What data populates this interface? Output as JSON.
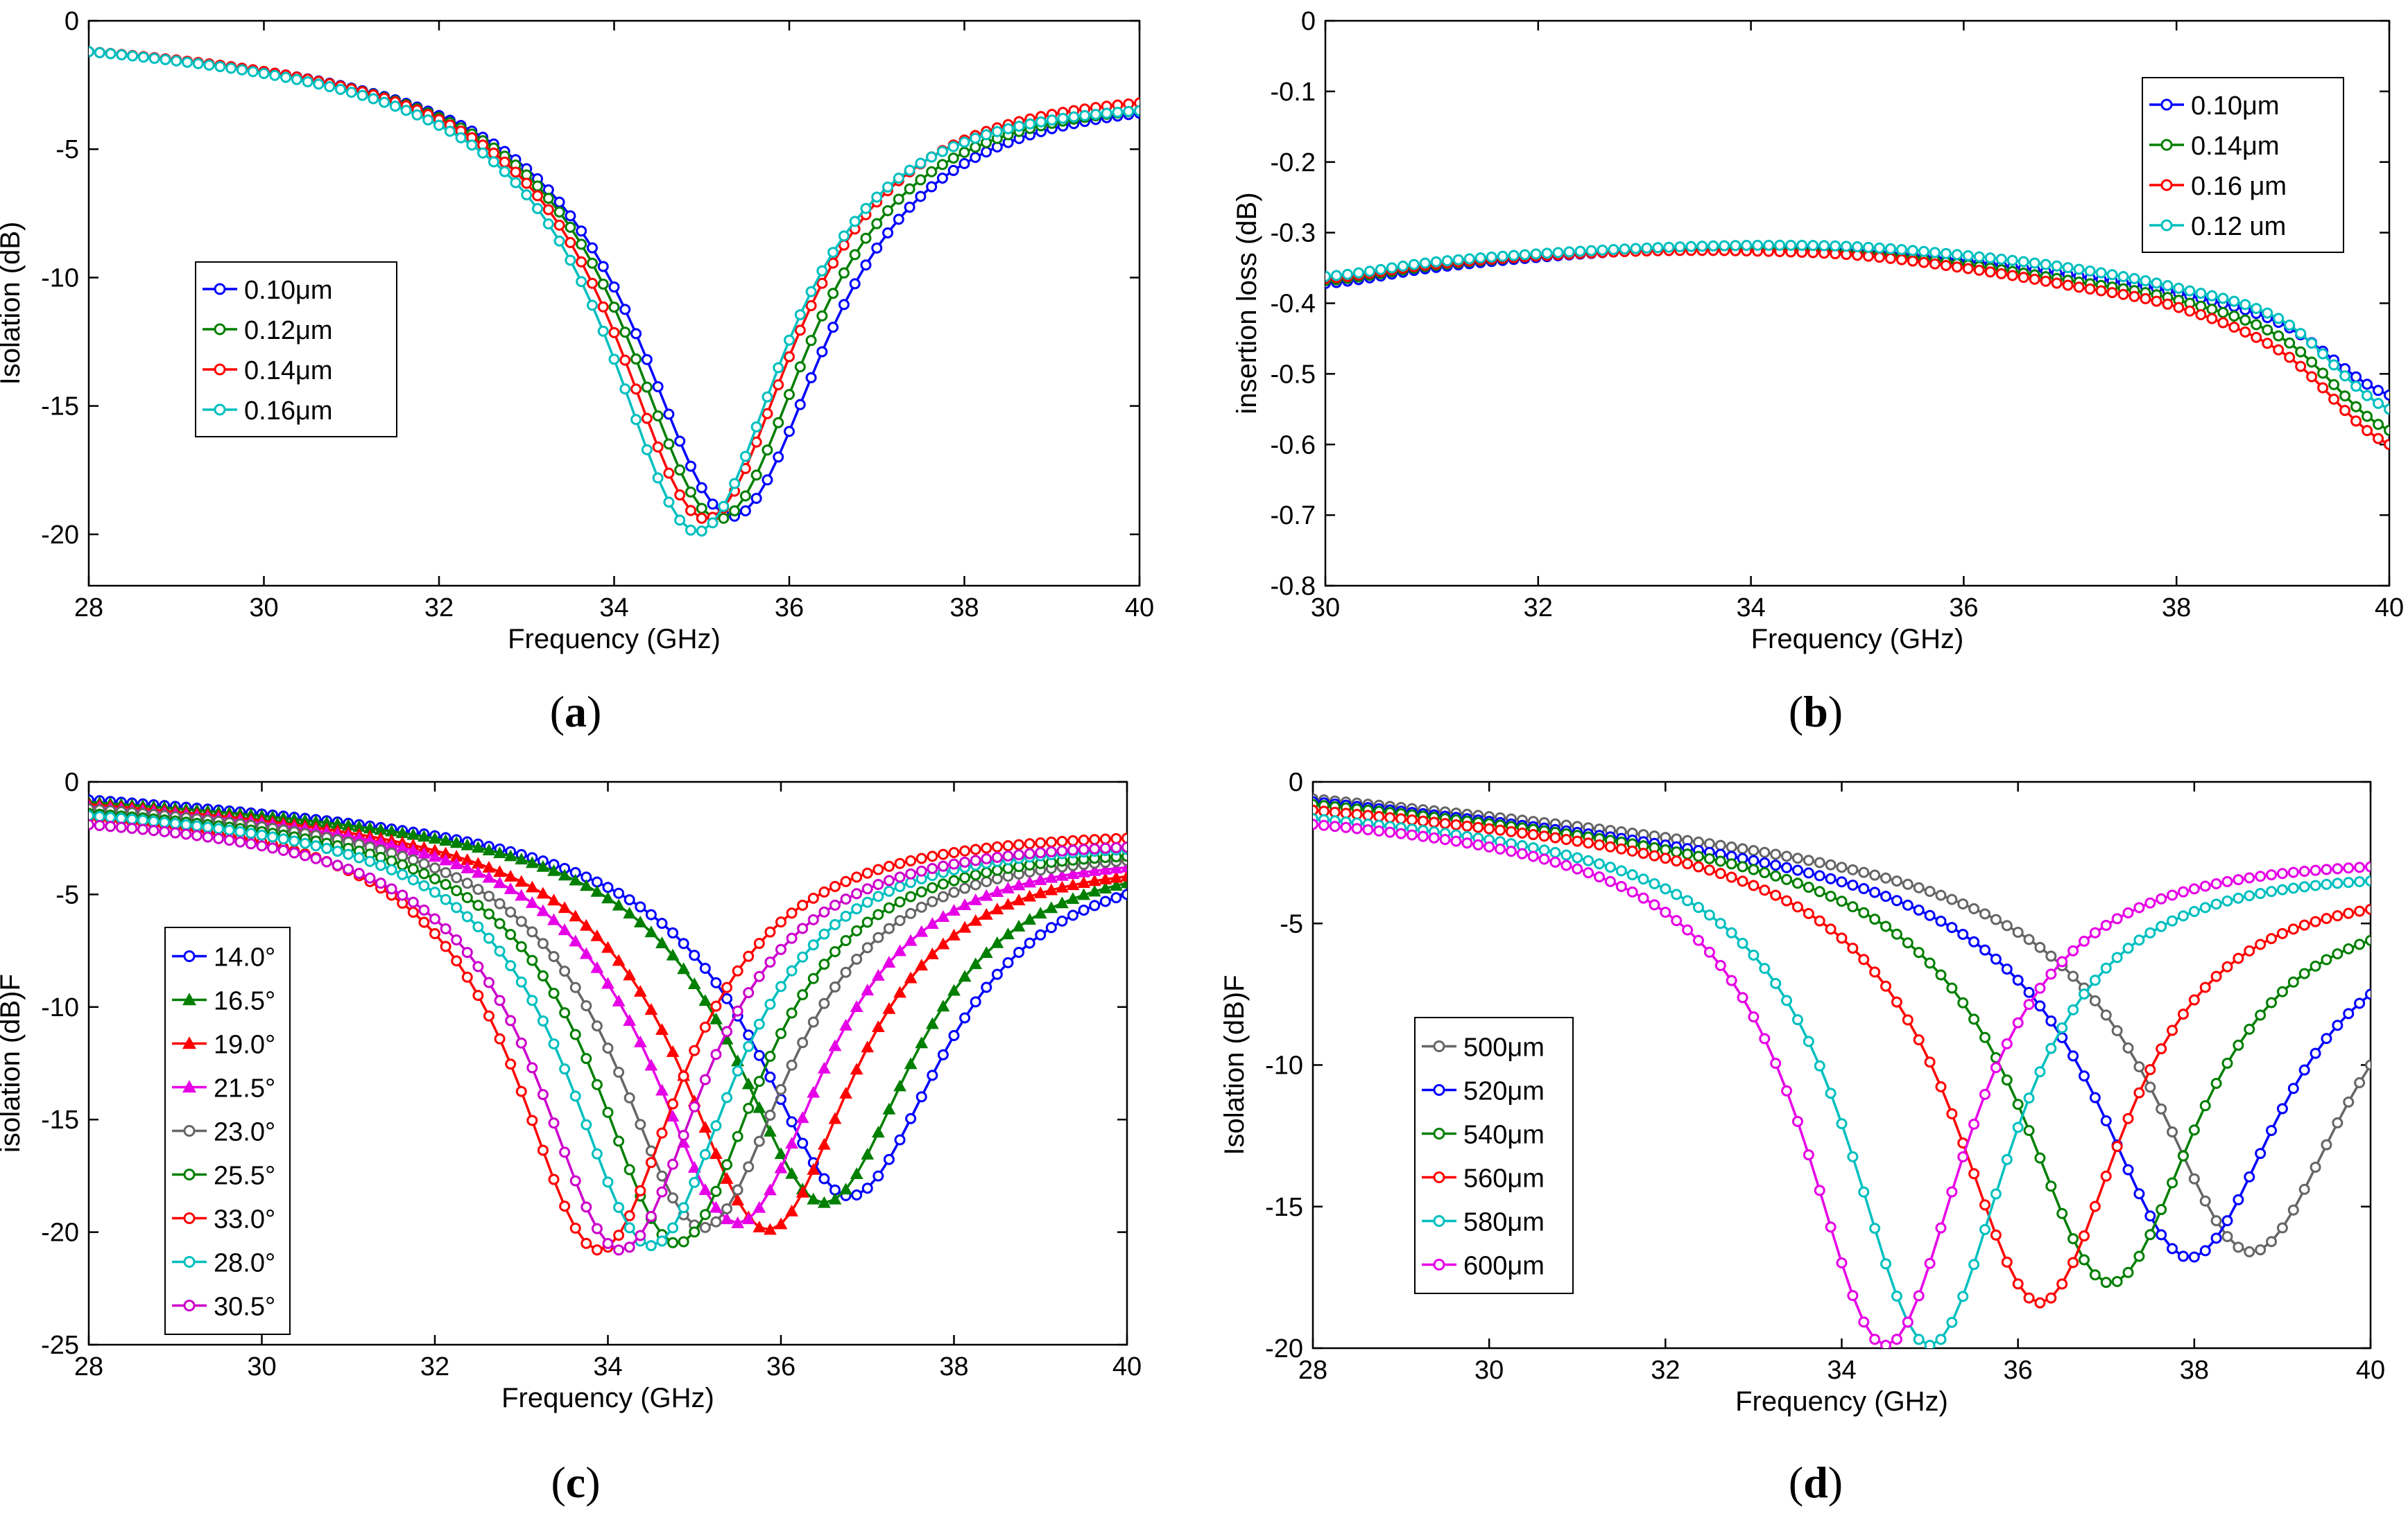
{
  "chart_data": [
    {
      "id": "a",
      "type": "line",
      "caption": "a",
      "xlabel": "Frequency (GHz)",
      "ylabel": "Isolation (dB)",
      "xlim": [
        28,
        40
      ],
      "ylim": [
        -22,
        0
      ],
      "xticks": [
        28,
        30,
        32,
        34,
        36,
        38,
        40
      ],
      "yticks": [
        0,
        -5,
        -10,
        -15,
        -20
      ],
      "xtick_labels": [
        "28",
        "30",
        "32",
        "34",
        "36",
        "38",
        "40"
      ],
      "ytick_labels": [
        "0",
        "-5",
        "-10",
        "-15",
        "-20"
      ],
      "legend_position": "middle-left",
      "series": [
        {
          "name": "0.10μm",
          "color": "#0000ff",
          "marker": "circle",
          "shape": {
            "start": -1.2,
            "min": -19.3,
            "f0": 35.35,
            "w": 1.35,
            "end": -3.6
          }
        },
        {
          "name": "0.12μm",
          "color": "#007f00",
          "marker": "circle",
          "shape": {
            "start": -1.2,
            "min": -19.4,
            "f0": 35.2,
            "w": 1.3,
            "end": -3.5
          }
        },
        {
          "name": "0.14μm",
          "color": "#ff0000",
          "marker": "circle",
          "shape": {
            "start": -1.2,
            "min": -19.4,
            "f0": 35.05,
            "w": 1.28,
            "end": -3.2
          }
        },
        {
          "name": "0.16μm",
          "color": "#00bfbf",
          "marker": "circle",
          "shape": {
            "start": -1.2,
            "min": -19.9,
            "f0": 34.95,
            "w": 1.25,
            "end": -3.5
          }
        }
      ]
    },
    {
      "id": "b",
      "type": "line",
      "caption": "b",
      "xlabel": "Frequency (GHz)",
      "ylabel": "insertion loss (dB)",
      "xlim": [
        30,
        40
      ],
      "ylim": [
        -0.8,
        0
      ],
      "xticks": [
        30,
        32,
        34,
        36,
        38,
        40
      ],
      "yticks": [
        0,
        -0.1,
        -0.2,
        -0.3,
        -0.4,
        -0.5,
        -0.6,
        -0.7,
        -0.8
      ],
      "xtick_labels": [
        "30",
        "32",
        "34",
        "36",
        "38",
        "40"
      ],
      "ytick_labels": [
        "0",
        "-0.1",
        "-0.2",
        "-0.3",
        "-0.4",
        "-0.5",
        "-0.6",
        "-0.7",
        "-0.8"
      ],
      "legend_position": "top-right",
      "series": [
        {
          "name": "0.10μm",
          "color": "#0000ff",
          "marker": "circle",
          "points": [
            [
              30,
              -0.372
            ],
            [
              31,
              -0.35
            ],
            [
              32,
              -0.335
            ],
            [
              33,
              -0.325
            ],
            [
              34,
              -0.32
            ],
            [
              35,
              -0.325
            ],
            [
              36,
              -0.34
            ],
            [
              37,
              -0.36
            ],
            [
              38,
              -0.385
            ],
            [
              39,
              -0.43
            ],
            [
              40,
              -0.53
            ]
          ]
        },
        {
          "name": "0.14μm",
          "color": "#007f00",
          "marker": "circle",
          "points": [
            [
              30,
              -0.368
            ],
            [
              31,
              -0.347
            ],
            [
              32,
              -0.333
            ],
            [
              33,
              -0.325
            ],
            [
              34,
              -0.322
            ],
            [
              35,
              -0.328
            ],
            [
              36,
              -0.345
            ],
            [
              37,
              -0.368
            ],
            [
              38,
              -0.395
            ],
            [
              39,
              -0.45
            ],
            [
              40,
              -0.58
            ]
          ]
        },
        {
          "name": "0.16 μm",
          "color": "#ff0000",
          "marker": "circle",
          "points": [
            [
              30,
              -0.365
            ],
            [
              31,
              -0.345
            ],
            [
              32,
              -0.333
            ],
            [
              33,
              -0.326
            ],
            [
              34,
              -0.326
            ],
            [
              35,
              -0.332
            ],
            [
              36,
              -0.35
            ],
            [
              37,
              -0.375
            ],
            [
              38,
              -0.405
            ],
            [
              39,
              -0.47
            ],
            [
              40,
              -0.6
            ]
          ]
        },
        {
          "name": "0.12 um",
          "color": "#00bfbf",
          "marker": "circle",
          "points": [
            [
              30,
              -0.362
            ],
            [
              31,
              -0.342
            ],
            [
              32,
              -0.33
            ],
            [
              33,
              -0.322
            ],
            [
              34,
              -0.318
            ],
            [
              35,
              -0.32
            ],
            [
              36,
              -0.332
            ],
            [
              37,
              -0.35
            ],
            [
              38,
              -0.378
            ],
            [
              39,
              -0.425
            ],
            [
              40,
              -0.55
            ]
          ]
        }
      ]
    },
    {
      "id": "c",
      "type": "line",
      "caption": "c",
      "xlabel": "Frequency (GHz)",
      "ylabel": "isolation (dB)F",
      "xlim": [
        28,
        40
      ],
      "ylim": [
        -25,
        0
      ],
      "xticks": [
        28,
        30,
        32,
        34,
        36,
        38,
        40
      ],
      "yticks": [
        0,
        -5,
        -10,
        -15,
        -20,
        -25
      ],
      "xtick_labels": [
        "28",
        "30",
        "32",
        "34",
        "36",
        "38",
        "40"
      ],
      "ytick_labels": [
        "0",
        "-5",
        "-10",
        "-15",
        "-20",
        "-25"
      ],
      "legend_position": "middle-left",
      "series": [
        {
          "name": "14.0°",
          "color": "#0000ff",
          "marker": "circle",
          "shape": {
            "start": -0.8,
            "min": -18.4,
            "f0": 36.8,
            "w": 1.35,
            "end": -5.0
          }
        },
        {
          "name": "16.5°",
          "color": "#007f00",
          "marker": "triangle",
          "shape": {
            "start": -0.9,
            "min": -18.7,
            "f0": 36.5,
            "w": 1.3,
            "end": -4.5
          }
        },
        {
          "name": "19.0°",
          "color": "#ff0000",
          "marker": "triangle",
          "shape": {
            "start": -1.0,
            "min": -19.9,
            "f0": 35.85,
            "w": 1.25,
            "end": -4.2
          }
        },
        {
          "name": "21.5°",
          "color": "#e600e6",
          "marker": "triangle",
          "shape": {
            "start": -1.1,
            "min": -19.6,
            "f0": 35.5,
            "w": 1.25,
            "end": -3.8
          }
        },
        {
          "name": "23.0°",
          "color": "#666666",
          "marker": "circle",
          "shape": {
            "start": -1.2,
            "min": -19.8,
            "f0": 35.1,
            "w": 1.25,
            "end": -3.5
          }
        },
        {
          "name": "25.5°",
          "color": "#007f00",
          "marker": "circle",
          "shape": {
            "start": -1.4,
            "min": -20.5,
            "f0": 34.8,
            "w": 1.2,
            "end": -3.3
          }
        },
        {
          "name": "33.0°",
          "color": "#ff0000",
          "marker": "circle",
          "shape": {
            "start": -1.6,
            "min": -20.8,
            "f0": 33.9,
            "w": 1.2,
            "end": -2.5
          }
        },
        {
          "name": "28.0°",
          "color": "#00bfbf",
          "marker": "circle",
          "shape": {
            "start": -1.5,
            "min": -20.6,
            "f0": 34.5,
            "w": 1.2,
            "end": -3.0
          }
        },
        {
          "name": "30.5°",
          "color": "#cc00cc",
          "marker": "circle",
          "shape": {
            "start": -1.9,
            "min": -20.8,
            "f0": 34.15,
            "w": 1.2,
            "end": -2.9
          }
        }
      ]
    },
    {
      "id": "d",
      "type": "line",
      "caption": "d",
      "xlabel": "Frequency (GHz)",
      "ylabel": "Isolation (dB)F",
      "xlim": [
        28,
        40
      ],
      "ylim": [
        -20,
        0
      ],
      "xticks": [
        28,
        30,
        32,
        34,
        36,
        38,
        40
      ],
      "yticks": [
        0,
        -5,
        -10,
        -15,
        -20
      ],
      "xtick_labels": [
        "28",
        "30",
        "32",
        "34",
        "36",
        "38",
        "40"
      ],
      "ytick_labels": [
        "0",
        "-5",
        "-10",
        "-15",
        "-20"
      ],
      "legend_position": "middle-left",
      "series": [
        {
          "name": "500μm",
          "color": "#666666",
          "marker": "circle",
          "shape": {
            "start": -0.6,
            "min": -16.6,
            "f0": 38.65,
            "w": 1.35,
            "end": -10.0
          }
        },
        {
          "name": "520μm",
          "color": "#0000ff",
          "marker": "circle",
          "shape": {
            "start": -0.7,
            "min": -16.8,
            "f0": 37.95,
            "w": 1.3,
            "end": -7.5
          }
        },
        {
          "name": "540μm",
          "color": "#007f00",
          "marker": "circle",
          "shape": {
            "start": -0.8,
            "min": -17.7,
            "f0": 37.05,
            "w": 1.25,
            "end": -5.6
          }
        },
        {
          "name": "560μm",
          "color": "#ff0000",
          "marker": "circle",
          "shape": {
            "start": -1.0,
            "min": -18.4,
            "f0": 36.25,
            "w": 1.2,
            "end": -4.5
          }
        },
        {
          "name": "580μm",
          "color": "#00bfbf",
          "marker": "circle",
          "shape": {
            "start": -1.3,
            "min": -19.9,
            "f0": 35.0,
            "w": 1.15,
            "end": -3.5
          }
        },
        {
          "name": "600μm",
          "color": "#e600e6",
          "marker": "circle",
          "shape": {
            "start": -1.5,
            "min": -19.9,
            "f0": 34.5,
            "w": 1.15,
            "end": -3.0
          }
        }
      ]
    }
  ]
}
